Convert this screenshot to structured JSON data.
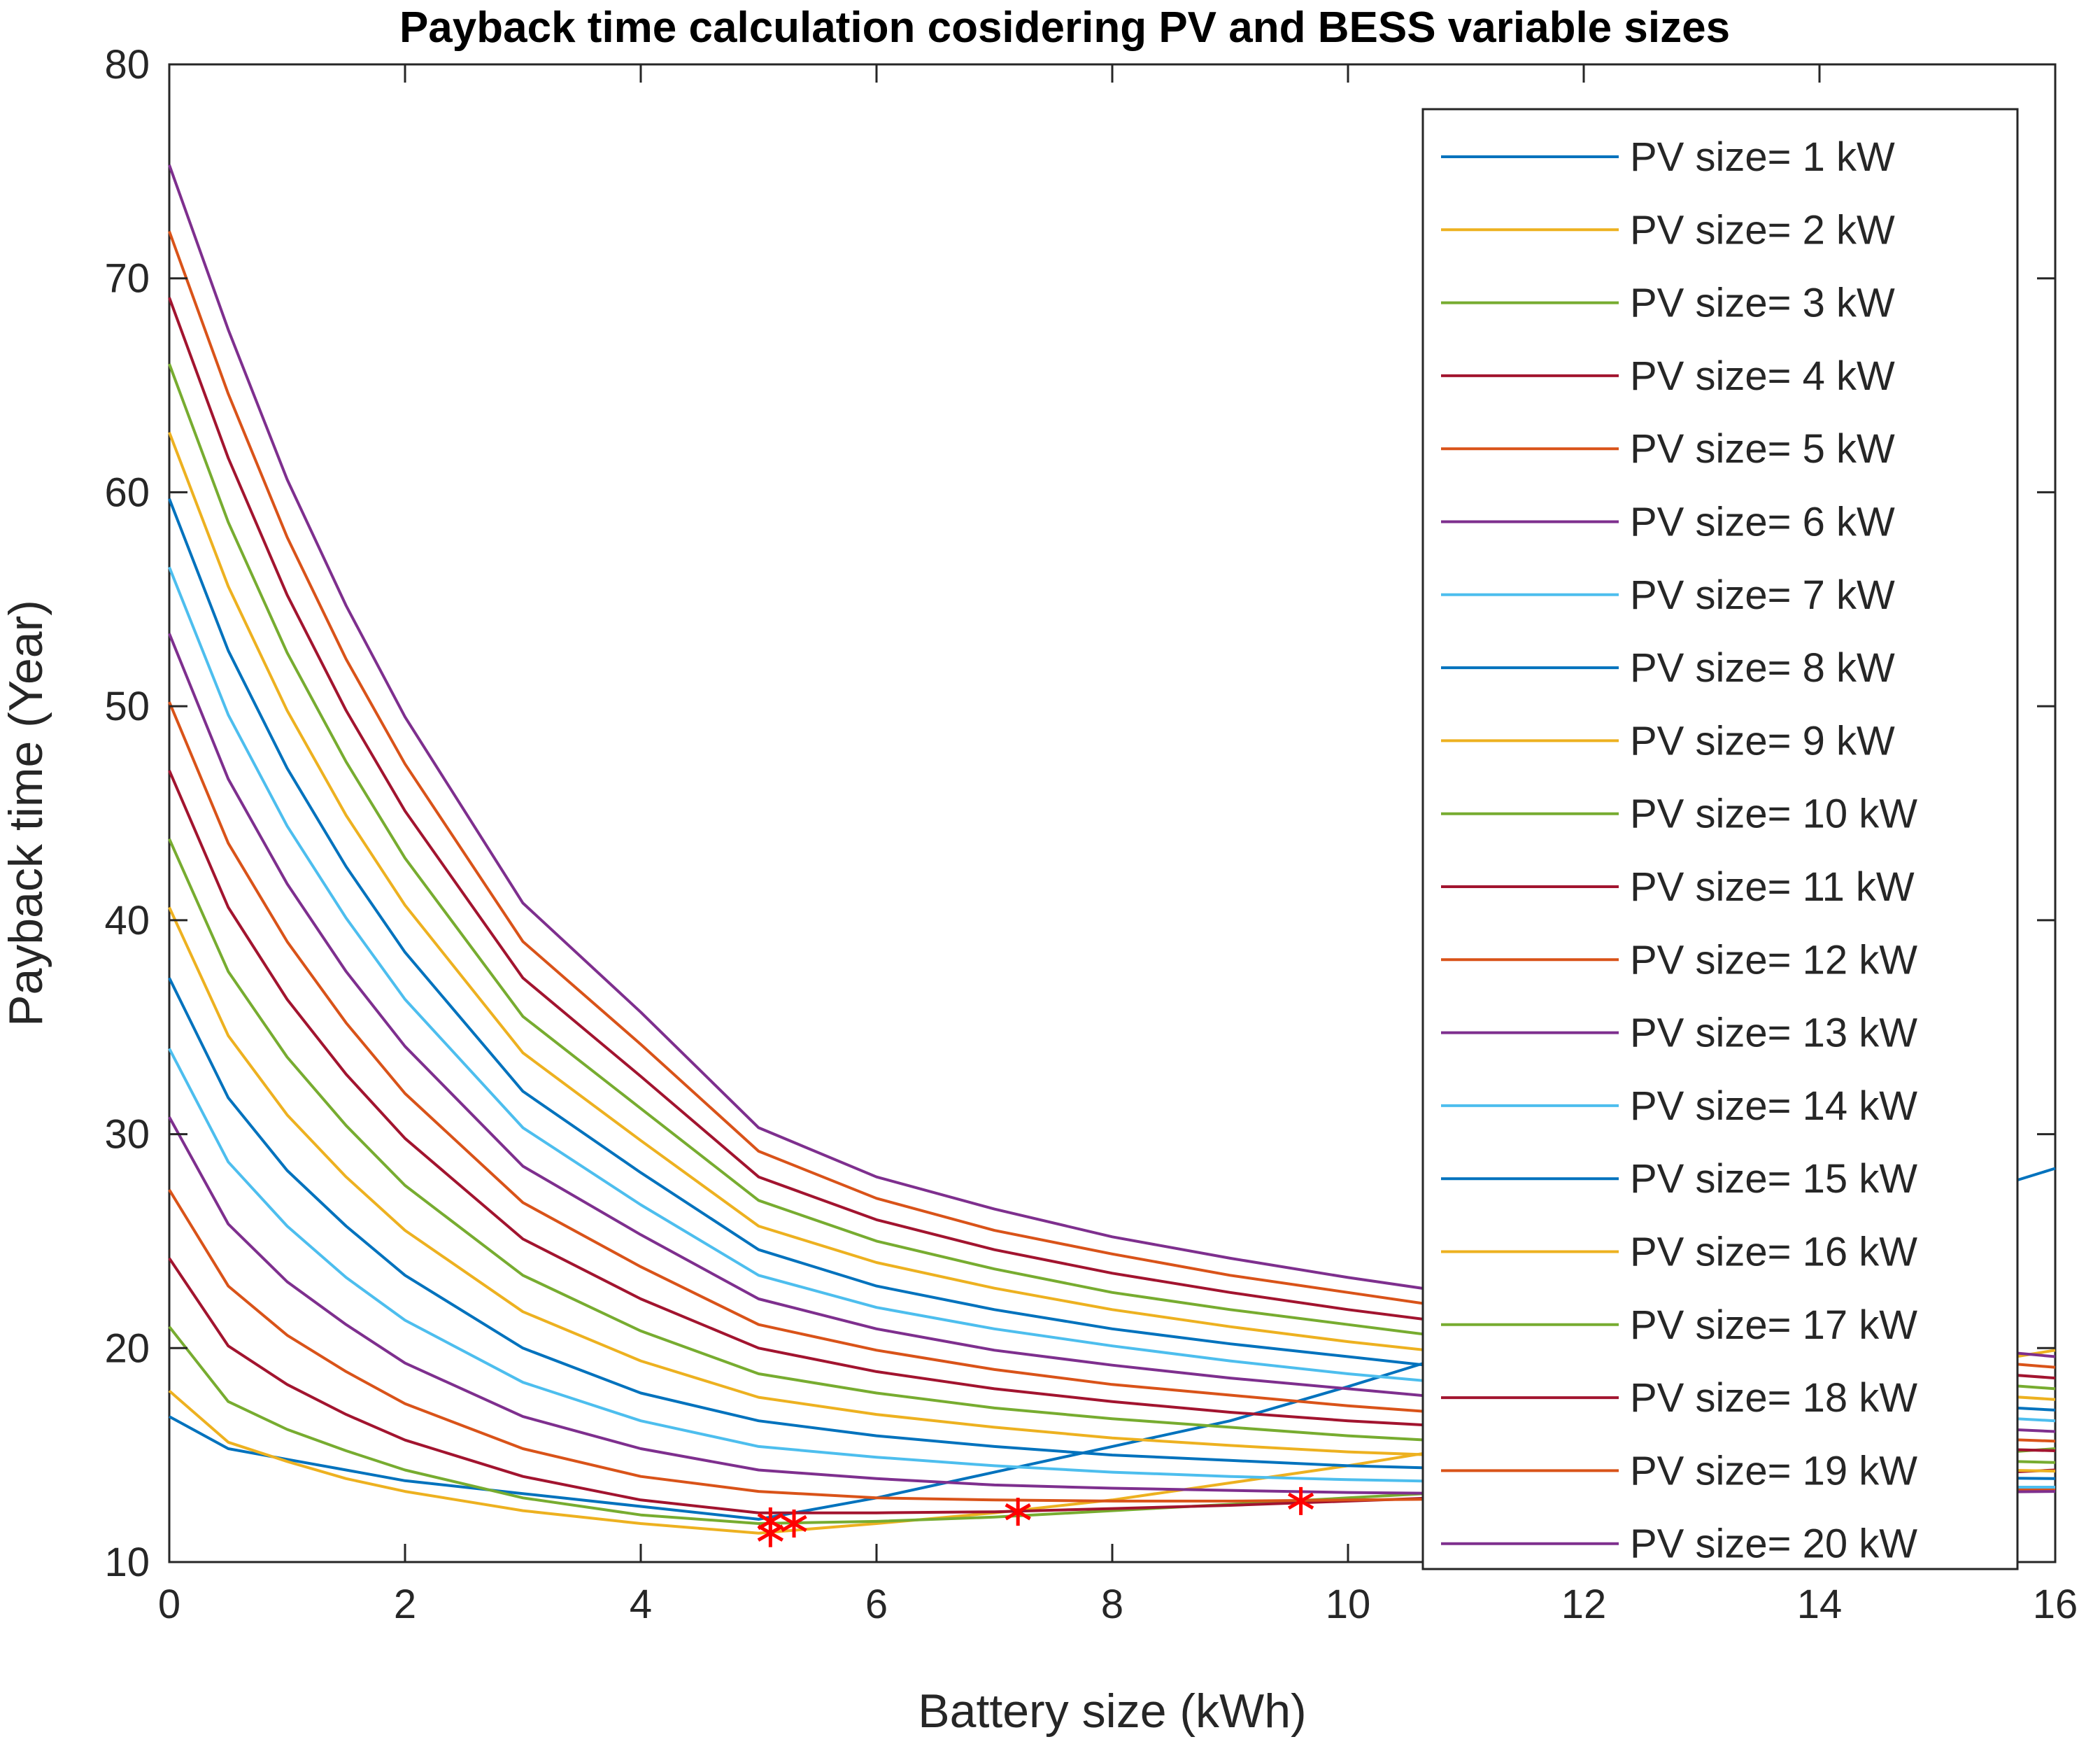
{
  "chart_data": {
    "type": "line",
    "title": "Payback time calculation cosidering PV and BESS variable sizes",
    "xlabel": "Battery size (kWh)",
    "ylabel": "Payback time (Year)",
    "xlim": [
      0,
      16
    ],
    "ylim": [
      10,
      80
    ],
    "xticks": [
      "0",
      "2",
      "4",
      "6",
      "8",
      "10",
      "12",
      "14",
      "16"
    ],
    "yticks": [
      "10",
      "20",
      "30",
      "40",
      "50",
      "60",
      "70",
      "80"
    ],
    "grid": false,
    "legend_position": "top-right",
    "x": [
      0,
      0.5,
      1,
      1.5,
      2,
      3,
      4,
      5,
      6,
      7,
      8,
      9,
      10,
      11,
      12,
      13,
      14,
      15,
      16
    ],
    "series": [
      {
        "name": "PV size= 1 kW",
        "color": "#0072BD",
        "values": [
          16.8,
          15.3,
          14.8,
          14.3,
          13.8,
          13.2,
          12.6,
          12.0,
          13.0,
          14.2,
          15.4,
          16.6,
          18.2,
          19.9,
          21.6,
          23.3,
          25.0,
          26.7,
          28.4
        ]
      },
      {
        "name": "PV size= 2 kW",
        "color": "#EDB120",
        "values": [
          18.0,
          15.6,
          14.7,
          13.9,
          13.3,
          12.4,
          11.8,
          11.35,
          11.8,
          12.3,
          12.9,
          13.7,
          14.5,
          15.4,
          16.3,
          17.2,
          18.1,
          19.0,
          19.9
        ]
      },
      {
        "name": "PV size= 3 kW",
        "color": "#77AC30",
        "values": [
          21.0,
          17.5,
          16.2,
          15.2,
          14.3,
          13.0,
          12.2,
          11.8,
          11.9,
          12.1,
          12.4,
          12.7,
          13.0,
          13.3,
          13.7,
          14.1,
          14.5,
          14.9,
          15.3
        ]
      },
      {
        "name": "PV size= 4 kW",
        "color": "#A2142F",
        "values": [
          24.2,
          20.1,
          18.3,
          16.9,
          15.7,
          14.0,
          12.9,
          12.3,
          12.3,
          12.35,
          12.5,
          12.65,
          12.85,
          13.05,
          13.3,
          13.55,
          13.8,
          14.05,
          14.3
        ]
      },
      {
        "name": "PV size= 5 kW",
        "color": "#D95319",
        "values": [
          27.4,
          22.9,
          20.6,
          18.9,
          17.4,
          15.3,
          14.0,
          13.3,
          13.0,
          12.9,
          12.85,
          12.85,
          12.9,
          12.95,
          13.0,
          13.1,
          13.2,
          13.3,
          13.4
        ]
      },
      {
        "name": "PV size= 6 kW",
        "color": "#7E2F8E",
        "values": [
          30.8,
          25.8,
          23.1,
          21.1,
          19.3,
          16.8,
          15.3,
          14.3,
          13.9,
          13.6,
          13.45,
          13.35,
          13.25,
          13.2,
          13.2,
          13.2,
          13.2,
          13.25,
          13.3
        ]
      },
      {
        "name": "PV size= 7 kW",
        "color": "#4DBEEE",
        "values": [
          34.0,
          28.7,
          25.7,
          23.3,
          21.3,
          18.4,
          16.6,
          15.4,
          14.9,
          14.5,
          14.2,
          14.0,
          13.85,
          13.75,
          13.65,
          13.6,
          13.55,
          13.5,
          13.5
        ]
      },
      {
        "name": "PV size= 8 kW",
        "color": "#0072BD",
        "values": [
          37.3,
          31.7,
          28.3,
          25.7,
          23.4,
          20.0,
          17.9,
          16.6,
          15.9,
          15.4,
          15.0,
          14.75,
          14.5,
          14.35,
          14.2,
          14.1,
          14.0,
          13.95,
          13.9
        ]
      },
      {
        "name": "PV size= 9 kW",
        "color": "#EDB120",
        "values": [
          40.6,
          34.6,
          30.9,
          28.0,
          25.5,
          21.7,
          19.4,
          17.7,
          16.9,
          16.3,
          15.8,
          15.45,
          15.15,
          14.95,
          14.75,
          14.6,
          14.45,
          14.35,
          14.25
        ]
      },
      {
        "name": "PV size= 10 kW",
        "color": "#77AC30",
        "values": [
          43.8,
          37.6,
          33.6,
          30.4,
          27.6,
          23.4,
          20.8,
          18.8,
          17.9,
          17.2,
          16.7,
          16.3,
          15.9,
          15.6,
          15.35,
          15.15,
          14.95,
          14.8,
          14.65
        ]
      },
      {
        "name": "PV size= 11 kW",
        "color": "#A2142F",
        "values": [
          47.0,
          40.6,
          36.3,
          32.8,
          29.8,
          25.1,
          22.3,
          20.0,
          18.9,
          18.1,
          17.5,
          17.0,
          16.6,
          16.3,
          16.0,
          15.75,
          15.55,
          15.35,
          15.2
        ]
      },
      {
        "name": "PV size= 12 kW",
        "color": "#D95319",
        "values": [
          50.2,
          43.6,
          39.0,
          35.2,
          31.9,
          26.8,
          23.8,
          21.1,
          19.9,
          19.0,
          18.3,
          17.8,
          17.3,
          16.9,
          16.6,
          16.3,
          16.05,
          15.85,
          15.65
        ]
      },
      {
        "name": "PV size= 13 kW",
        "color": "#7E2F8E",
        "values": [
          53.4,
          46.6,
          41.7,
          37.6,
          34.1,
          28.5,
          25.3,
          22.3,
          20.9,
          19.9,
          19.2,
          18.6,
          18.1,
          17.6,
          17.2,
          16.9,
          16.6,
          16.35,
          16.1
        ]
      },
      {
        "name": "PV size= 14 kW",
        "color": "#4DBEEE",
        "values": [
          56.5,
          49.6,
          44.4,
          40.1,
          36.3,
          30.3,
          26.7,
          23.4,
          21.9,
          20.9,
          20.1,
          19.4,
          18.8,
          18.3,
          17.9,
          17.5,
          17.2,
          16.9,
          16.6
        ]
      },
      {
        "name": "PV size= 15 kW",
        "color": "#0072BD",
        "values": [
          59.7,
          52.6,
          47.1,
          42.5,
          38.5,
          32.0,
          28.2,
          24.6,
          22.9,
          21.8,
          20.9,
          20.2,
          19.6,
          19.0,
          18.5,
          18.1,
          17.75,
          17.4,
          17.1
        ]
      },
      {
        "name": "PV size= 16 kW",
        "color": "#EDB120",
        "values": [
          62.8,
          55.6,
          49.8,
          44.9,
          40.7,
          33.8,
          29.7,
          25.7,
          24.0,
          22.8,
          21.8,
          21.0,
          20.3,
          19.7,
          19.2,
          18.7,
          18.3,
          17.95,
          17.6
        ]
      },
      {
        "name": "PV size= 17 kW",
        "color": "#77AC30",
        "values": [
          66.0,
          58.6,
          52.5,
          47.4,
          42.9,
          35.5,
          31.2,
          26.9,
          25.0,
          23.7,
          22.6,
          21.8,
          21.1,
          20.4,
          19.8,
          19.3,
          18.9,
          18.5,
          18.1
        ]
      },
      {
        "name": "PV size= 18 kW",
        "color": "#A2142F",
        "values": [
          69.1,
          61.6,
          55.2,
          49.8,
          45.1,
          37.3,
          32.7,
          28.0,
          26.0,
          24.6,
          23.5,
          22.6,
          21.8,
          21.1,
          20.5,
          19.9,
          19.45,
          19.0,
          18.6
        ]
      },
      {
        "name": "PV size= 19 kW",
        "color": "#D95319",
        "values": [
          72.2,
          64.6,
          57.9,
          52.2,
          47.3,
          39.0,
          34.2,
          29.2,
          27.0,
          25.5,
          24.4,
          23.4,
          22.6,
          21.8,
          21.2,
          20.6,
          20.0,
          19.55,
          19.1
        ]
      },
      {
        "name": "PV size= 20 kW",
        "color": "#7E2F8E",
        "values": [
          75.3,
          67.6,
          60.6,
          54.7,
          49.5,
          40.8,
          35.7,
          30.3,
          28.0,
          26.5,
          25.2,
          24.2,
          23.3,
          22.5,
          21.8,
          21.2,
          20.6,
          20.1,
          19.6
        ]
      }
    ],
    "optimum_markers": {
      "marker": "*",
      "color": "#FF0000",
      "points": [
        [
          5.1,
          11.35
        ],
        [
          5.1,
          11.9
        ],
        [
          5.3,
          11.8
        ],
        [
          7.2,
          12.35
        ],
        [
          9.6,
          12.85
        ]
      ]
    }
  }
}
